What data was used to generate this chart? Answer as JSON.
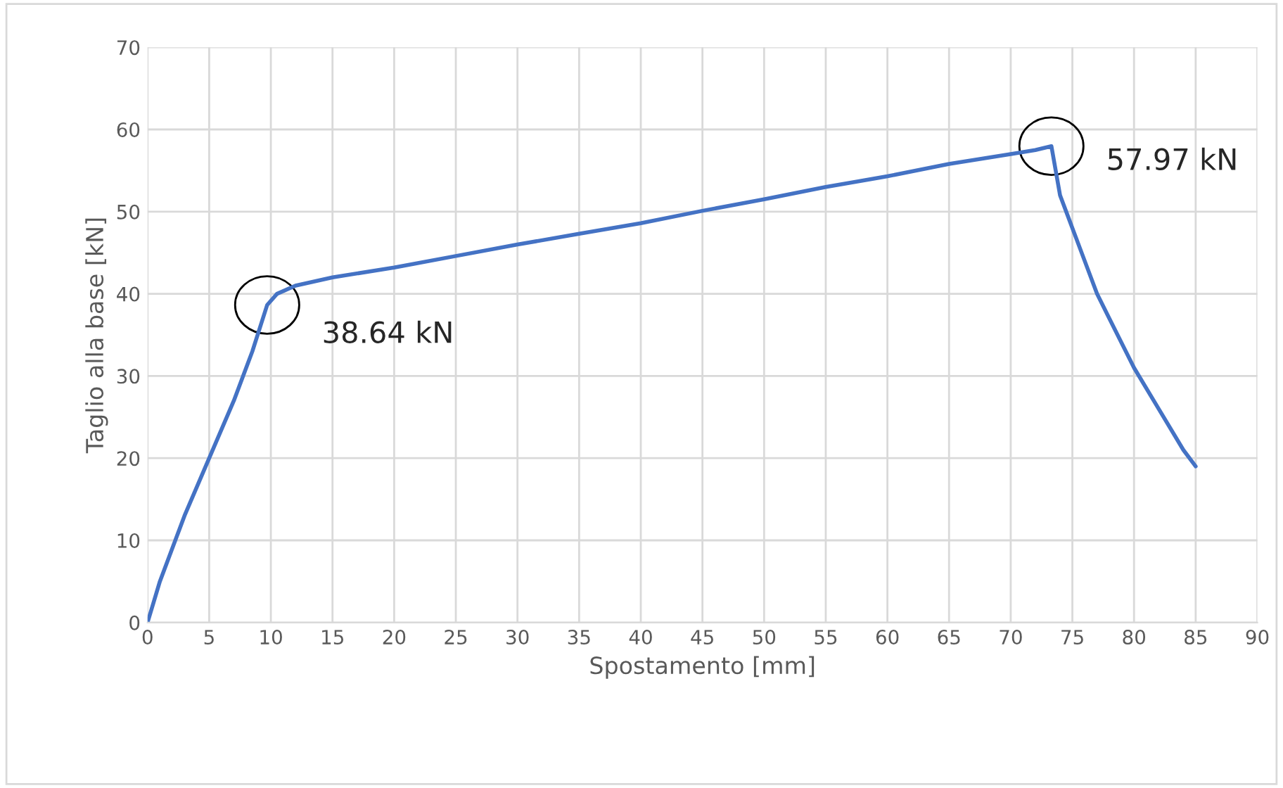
{
  "chart_data": {
    "type": "line",
    "xlabel": "Spostamento [mm]",
    "ylabel": "Taglio alla base [kN]",
    "series": [
      {
        "color": "#4472c4",
        "x": [
          0,
          1,
          3,
          5,
          7,
          8.5,
          9.7,
          10.5,
          12,
          15,
          20,
          25,
          30,
          35,
          40,
          45,
          50,
          55,
          60,
          65,
          70,
          72,
          73.3,
          74,
          75,
          76,
          77,
          78,
          80,
          82,
          84,
          85
        ],
        "values": [
          0,
          5,
          13,
          20,
          27,
          33,
          38.64,
          40,
          41,
          42,
          43.2,
          44.6,
          46,
          47.3,
          48.6,
          50.1,
          51.5,
          53,
          54.3,
          55.8,
          57,
          57.5,
          57.97,
          52,
          48,
          44,
          40,
          37,
          31,
          26,
          21,
          19
        ]
      }
    ],
    "xlim": [
      0,
      90
    ],
    "xticks": [
      0,
      5,
      10,
      15,
      20,
      25,
      30,
      35,
      40,
      45,
      50,
      55,
      60,
      65,
      70,
      75,
      80,
      85,
      90
    ],
    "ylim": [
      0,
      70
    ],
    "yticks": [
      0,
      10,
      20,
      30,
      40,
      50,
      60,
      70
    ],
    "grid": true,
    "legend": false,
    "marker": "none",
    "line_style": "solid",
    "annotations": [
      {
        "text": "38.64 kN",
        "x": 9.7,
        "y": 38.64
      },
      {
        "text": "57.97 kN",
        "x": 73.3,
        "y": 57.97
      }
    ]
  }
}
